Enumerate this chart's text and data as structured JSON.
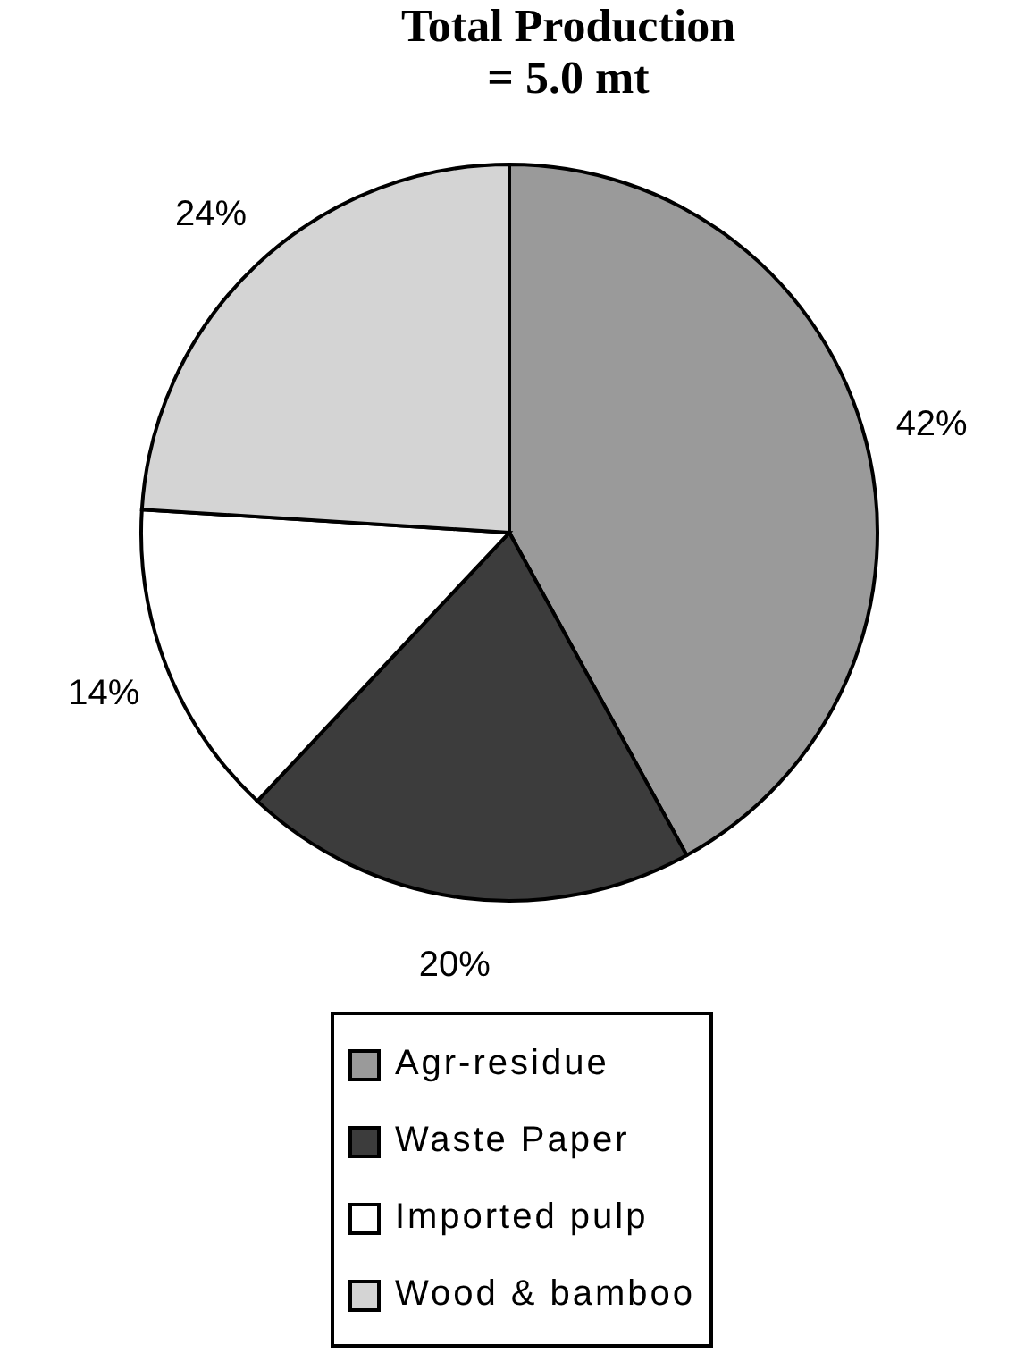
{
  "chart_data": {
    "type": "pie",
    "title": "Total Production = 5.0 mt",
    "categories": [
      "Agr-residue",
      "Waste Paper",
      "Imported pulp",
      "Wood & bamboo"
    ],
    "values": [
      42,
      20,
      14,
      24
    ],
    "colors": [
      "#9a9a9a",
      "#3c3c3c",
      "#ffffff",
      "#d4d4d4"
    ],
    "value_labels": [
      "42%",
      "20%",
      "14%",
      "24%"
    ],
    "legend": "bottom"
  }
}
